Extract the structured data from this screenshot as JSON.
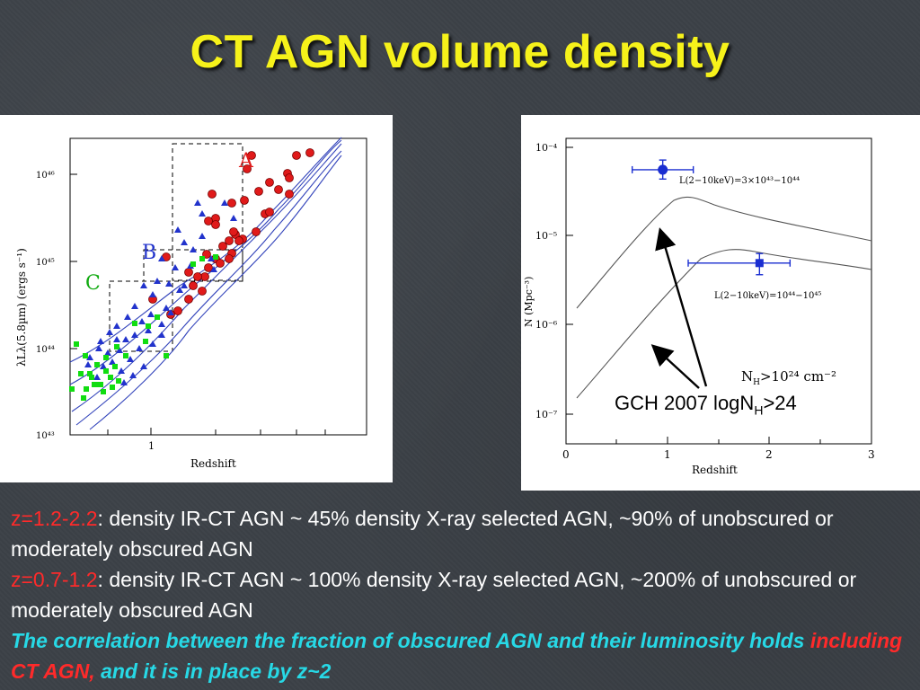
{
  "slide": {
    "title": "CT AGN volume density"
  },
  "left_plot": {
    "xlabel": "Redshift",
    "ylabel": "λLλ(5.8µm) (ergs s⁻¹)",
    "y_ticks": [
      "10⁴³",
      "10⁴⁴",
      "10⁴⁵",
      "10⁴⁶"
    ],
    "x_ticks": [
      "1"
    ],
    "region_labels": [
      "A",
      "B",
      "C"
    ],
    "colors": {
      "A": "#e01a1a",
      "B": "#2233cc",
      "C": "#11dd11",
      "curves": "#3344bb"
    }
  },
  "right_plot": {
    "xlabel": "Redshift",
    "ylabel": "N (Mpc⁻³)",
    "x_ticks": [
      "0",
      "1",
      "2",
      "3"
    ],
    "y_ticks": [
      "10⁻⁴",
      "10⁻⁵",
      "10⁻⁶",
      "10⁻⁷"
    ],
    "label_upper": "L(2−10keV)=3×10⁴³−10⁴⁴",
    "label_lower": "L(2−10keV)=10⁴⁴−10⁴⁵",
    "nh_label": "N",
    "nh_sub": "H",
    "nh_value": ">10²⁴  cm⁻²",
    "gch_prefix": "GCH 2007 logN",
    "gch_sub": "H",
    "gch_suffix": ">24",
    "chart_data": {
      "type": "scatter",
      "x": [
        0.95,
        1.9
      ],
      "y": [
        5.6e-05,
        5e-06
      ],
      "xlim": [
        0,
        3
      ],
      "ylim": [
        5e-08,
        0.00015
      ],
      "yscale": "log"
    }
  },
  "caption": {
    "line1_range": "z=1.2-2.2",
    "line1_text": ": density IR-CT AGN ~ 45% density X-ray selected AGN, ~90% of unobscured or moderately obscured AGN",
    "line2_range": "z=0.7-1.2",
    "line2_text": ": density IR-CT AGN ~ 100% density X-ray selected AGN, ~200% of unobscured or moderately obscured AGN",
    "line3_a": "The correlation between the fraction of obscured AGN and their luminosity holds ",
    "line3_b": "including CT AGN,",
    "line3_c": " and it is in place by z~2"
  }
}
